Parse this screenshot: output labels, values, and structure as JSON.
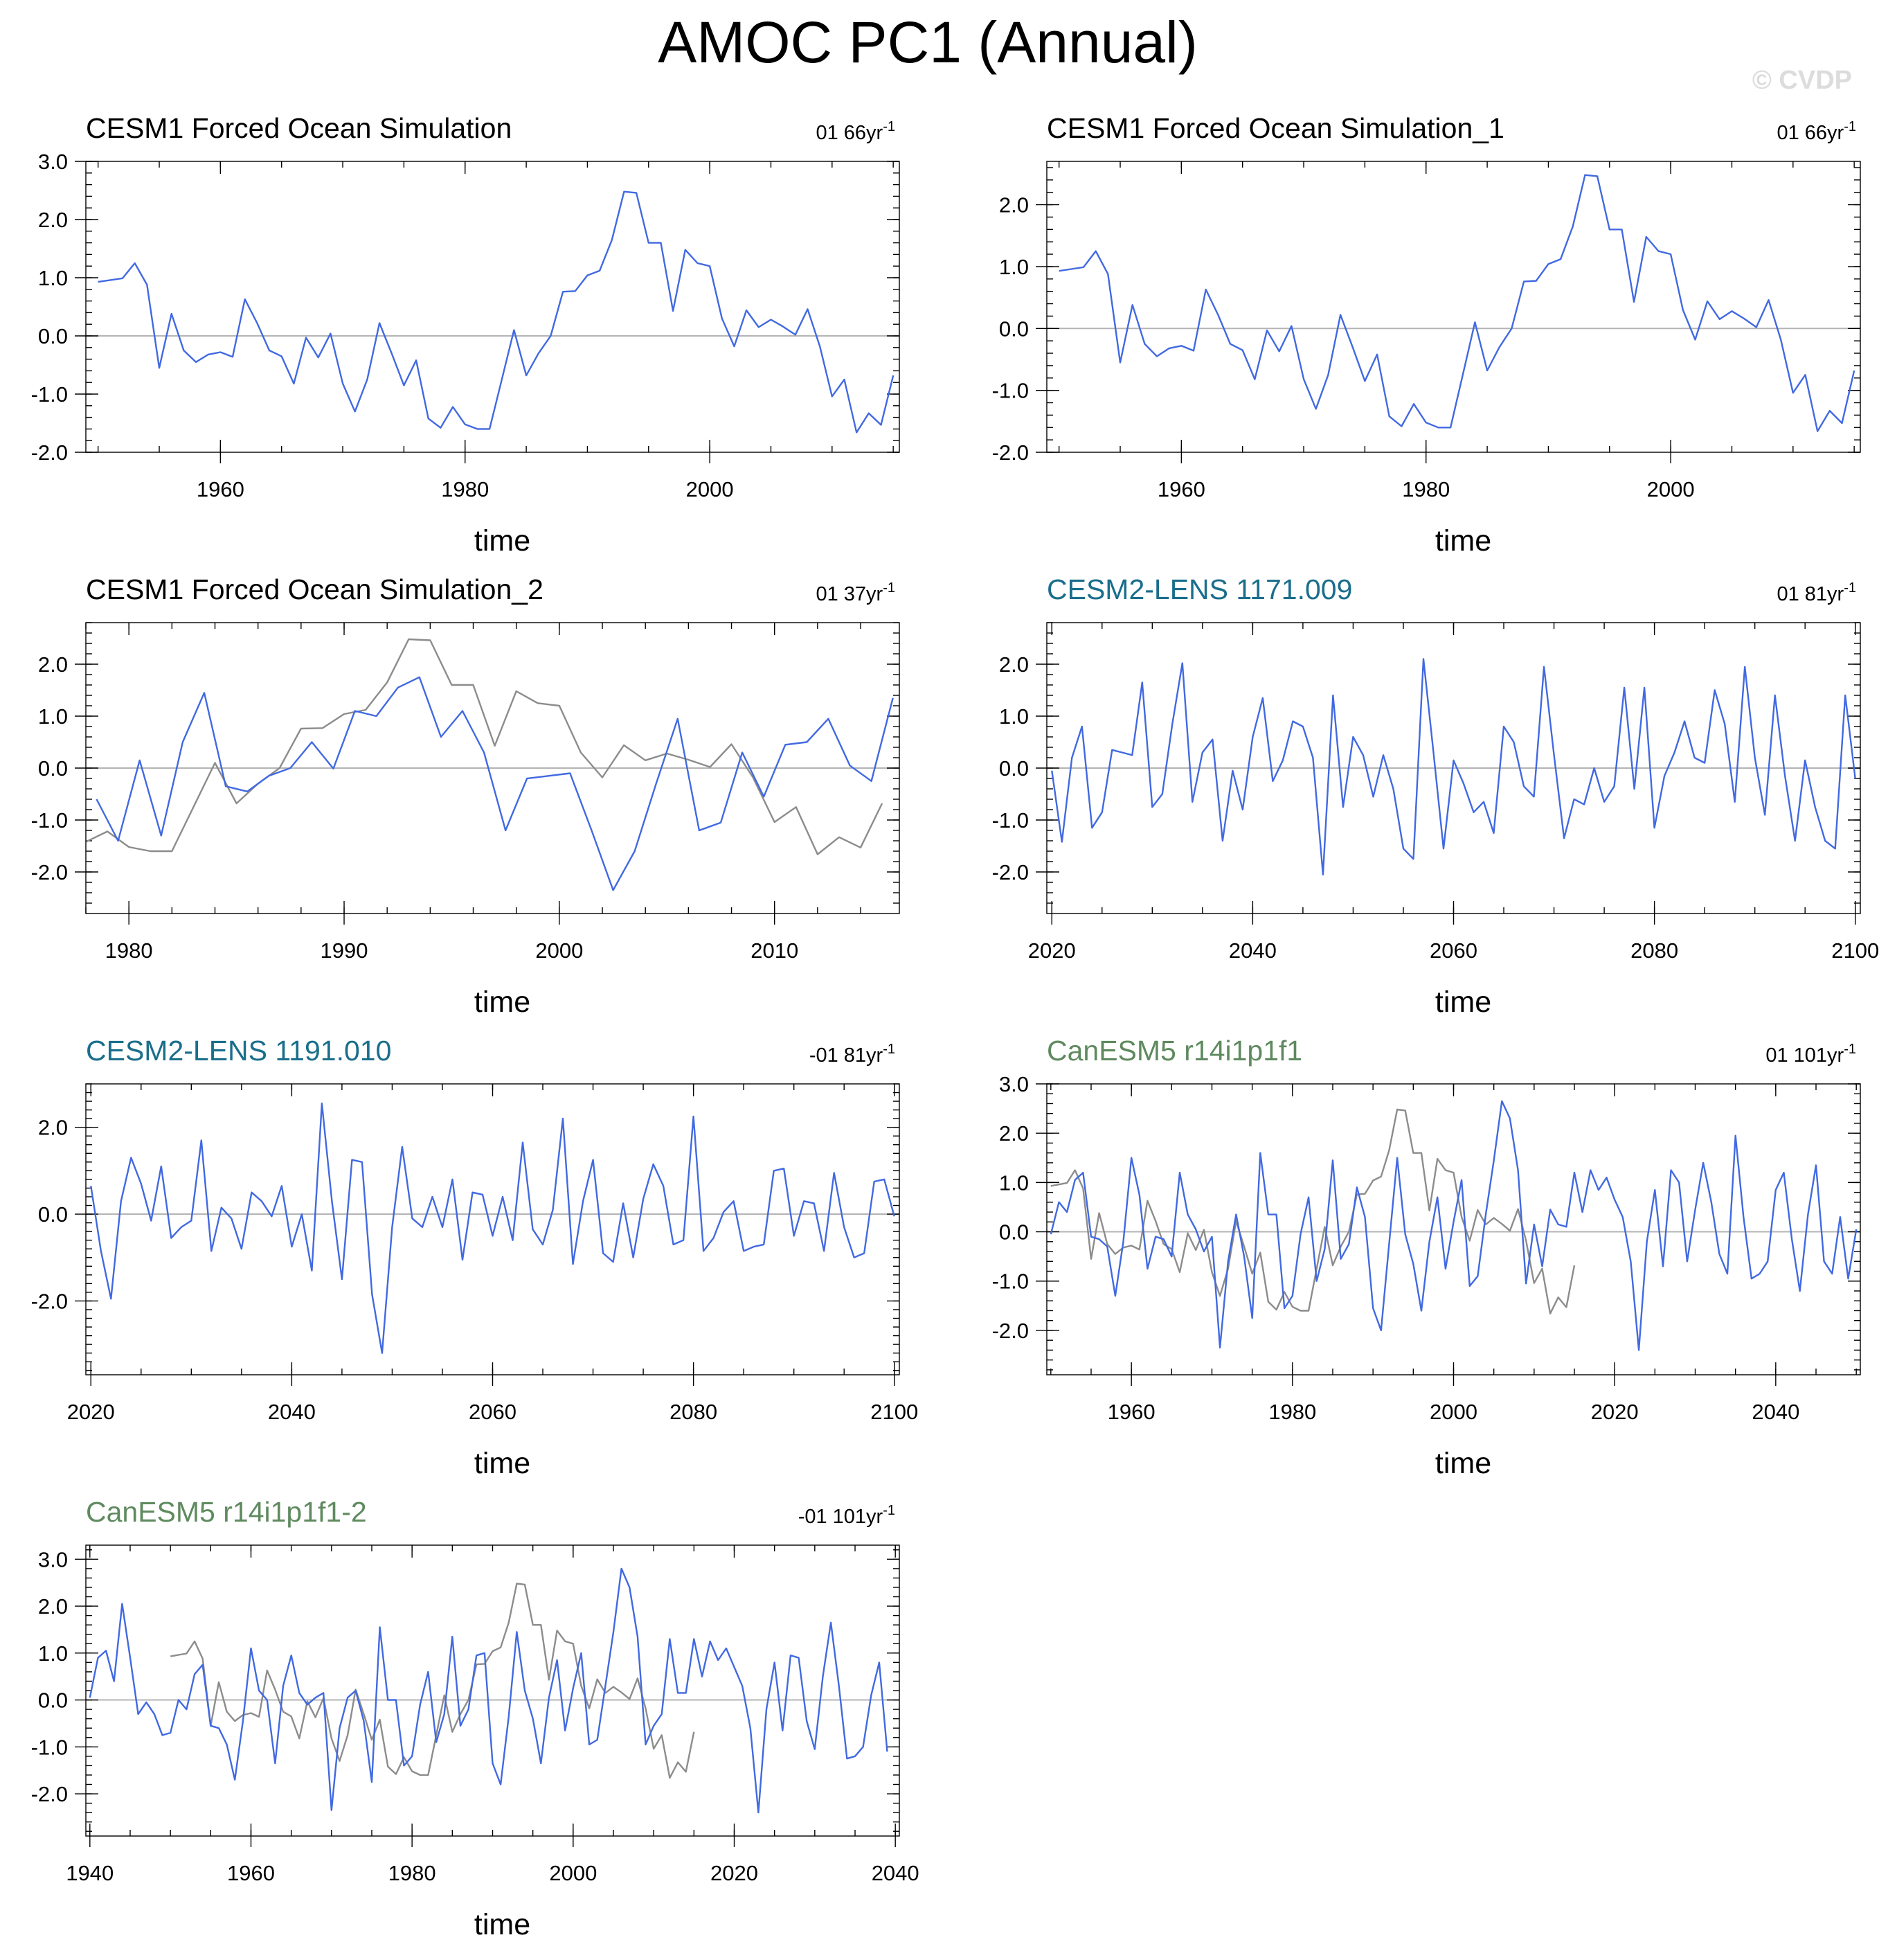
{
  "figure": {
    "title": "AMOC PC1 (Annual)",
    "watermark": "© CVDP"
  },
  "colors": {
    "model_line": "#4169e1",
    "reference_line": "#8c8c8c",
    "zero_line": "#b4b4b4",
    "title_black": "#000000",
    "title_cesm2": "#1a6e8c",
    "title_canesm5": "#5f8a5f"
  },
  "chart_data": [
    {
      "type": "line",
      "title": "CESM1 Forced Ocean Simulation",
      "title_color": "#000000",
      "annotation": "01 66yr",
      "annotation_sup": "-1",
      "xlabel": "time",
      "ylabel": "",
      "xlim": [
        1949,
        2015.5
      ],
      "ylim": [
        -2.0,
        3.0
      ],
      "xticks": [
        1960,
        1980,
        2000
      ],
      "xtick_labels": [
        "1960",
        "1980",
        "2000"
      ],
      "yticks": [
        -2,
        -1,
        0,
        1,
        2,
        3
      ],
      "ytick_labels": [
        "-2.0",
        "-1.0",
        "0.0",
        "1.0",
        "2.0",
        "3.0"
      ],
      "grid": false,
      "series": [
        {
          "role": "model",
          "x_start": 1950,
          "values": [
            0.93,
            0.96,
            0.99,
            1.25,
            0.88,
            -0.55,
            0.38,
            -0.25,
            -0.45,
            -0.32,
            -0.28,
            -0.36,
            0.63,
            0.22,
            -0.25,
            -0.35,
            -0.82,
            -0.03,
            -0.37,
            0.04,
            -0.82,
            -1.3,
            -0.75,
            0.22,
            -0.3,
            -0.85,
            -0.42,
            -1.42,
            -1.58,
            -1.22,
            -1.52,
            -1.6,
            -1.6,
            -0.75,
            0.1,
            -0.68,
            -0.3,
            0.0,
            0.76,
            0.77,
            1.04,
            1.12,
            1.65,
            2.48,
            2.46,
            1.6,
            1.6,
            0.43,
            1.48,
            1.25,
            1.2,
            0.3,
            -0.18,
            0.44,
            0.15,
            0.28,
            0.16,
            0.02,
            0.46,
            -0.18,
            -1.04,
            -0.75,
            -1.66,
            -1.33,
            -1.53,
            -0.68
          ]
        }
      ]
    },
    {
      "type": "line",
      "title": "CESM1 Forced Ocean Simulation_1",
      "title_color": "#000000",
      "annotation": "01 66yr",
      "annotation_sup": "-1",
      "xlabel": "time",
      "ylabel": "",
      "xlim": [
        1949,
        2015.5
      ],
      "ylim": [
        -2.0,
        2.7
      ],
      "xticks": [
        1960,
        1980,
        2000
      ],
      "xtick_labels": [
        "1960",
        "1980",
        "2000"
      ],
      "yticks": [
        -2,
        -1,
        0,
        1,
        2
      ],
      "ytick_labels": [
        "-2.0",
        "-1.0",
        "0.0",
        "1.0",
        "2.0"
      ],
      "grid": false,
      "series": [
        {
          "role": "model",
          "x_start": 1950,
          "values": [
            0.93,
            0.96,
            0.99,
            1.25,
            0.88,
            -0.55,
            0.38,
            -0.25,
            -0.45,
            -0.32,
            -0.28,
            -0.36,
            0.63,
            0.22,
            -0.25,
            -0.35,
            -0.82,
            -0.03,
            -0.37,
            0.04,
            -0.82,
            -1.3,
            -0.75,
            0.22,
            -0.3,
            -0.85,
            -0.42,
            -1.42,
            -1.58,
            -1.22,
            -1.52,
            -1.6,
            -1.6,
            -0.75,
            0.1,
            -0.68,
            -0.3,
            0.0,
            0.76,
            0.77,
            1.04,
            1.12,
            1.65,
            2.48,
            2.46,
            1.6,
            1.6,
            0.43,
            1.48,
            1.25,
            1.2,
            0.3,
            -0.18,
            0.44,
            0.15,
            0.28,
            0.16,
            0.02,
            0.46,
            -0.18,
            -1.04,
            -0.75,
            -1.66,
            -1.33,
            -1.53,
            -0.68
          ]
        }
      ]
    },
    {
      "type": "line",
      "title": "CESM1 Forced Ocean Simulation_2",
      "title_color": "#000000",
      "annotation": "01 37yr",
      "annotation_sup": "-1",
      "xlabel": "time",
      "ylabel": "",
      "xlim": [
        1978,
        2015.8
      ],
      "ylim": [
        -2.8,
        2.8
      ],
      "xticks": [
        1980,
        1990,
        2000,
        2010
      ],
      "xtick_labels": [
        "1980",
        "1990",
        "2000",
        "2010"
      ],
      "yticks": [
        -2,
        -1,
        0,
        1,
        2
      ],
      "ytick_labels": [
        "-2.0",
        "-1.0",
        "0.0",
        "1.0",
        "2.0"
      ],
      "grid": false,
      "series": [
        {
          "role": "reference",
          "x_start": 1978,
          "values": [
            -1.42,
            -1.22,
            -1.52,
            -1.6,
            -1.6,
            -0.75,
            0.1,
            -0.68,
            -0.3,
            0.0,
            0.76,
            0.77,
            1.04,
            1.12,
            1.65,
            2.48,
            2.46,
            1.6,
            1.6,
            0.43,
            1.48,
            1.25,
            1.2,
            0.3,
            -0.18,
            0.44,
            0.15,
            0.28,
            0.16,
            0.02,
            0.46,
            -0.18,
            -1.04,
            -0.75,
            -1.66,
            -1.33,
            -1.53,
            -0.68
          ]
        },
        {
          "role": "model",
          "x_start": 1978.5,
          "values": [
            -0.6,
            -1.4,
            0.15,
            -1.3,
            0.5,
            1.45,
            -0.35,
            -0.45,
            -0.15,
            0.0,
            0.5,
            -0.01,
            1.1,
            1.0,
            1.55,
            1.75,
            0.6,
            1.1,
            0.3,
            -1.2,
            -0.2,
            -0.15,
            -0.1,
            -1.2,
            -2.35,
            -1.6,
            -0.3,
            0.95,
            -1.2,
            -1.05,
            0.3,
            -0.55,
            0.45,
            0.5,
            0.95,
            0.05,
            -0.25,
            1.35
          ]
        }
      ]
    },
    {
      "type": "line",
      "title": "CESM2-LENS 1171.009",
      "title_color": "#1a6e8c",
      "annotation": "01 81yr",
      "annotation_sup": "-1",
      "xlabel": "time",
      "ylabel": "",
      "xlim": [
        2019.5,
        2100.5
      ],
      "ylim": [
        -2.8,
        2.8
      ],
      "xticks": [
        2020,
        2040,
        2060,
        2080,
        2100
      ],
      "xtick_labels": [
        "2020",
        "2040",
        "2060",
        "2080",
        "2100"
      ],
      "yticks": [
        -2,
        -1,
        0,
        1,
        2
      ],
      "ytick_labels": [
        "-2.0",
        "-1.0",
        "0.0",
        "1.0",
        "2.0"
      ],
      "grid": false,
      "series": [
        {
          "role": "model",
          "x_start": 2020,
          "values": [
            -0.05,
            -1.42,
            0.2,
            0.8,
            -1.15,
            -0.85,
            0.35,
            0.3,
            0.25,
            1.65,
            -0.75,
            -0.5,
            0.85,
            2.02,
            -0.65,
            0.3,
            0.55,
            -1.4,
            -0.05,
            -0.8,
            0.6,
            1.35,
            -0.25,
            0.15,
            0.9,
            0.8,
            0.2,
            -2.05,
            1.4,
            -0.75,
            0.6,
            0.25,
            -0.55,
            0.25,
            -0.4,
            -1.55,
            -1.75,
            2.1,
            0.3,
            -1.55,
            0.15,
            -0.3,
            -0.85,
            -0.65,
            -1.25,
            0.8,
            0.5,
            -0.35,
            -0.55,
            1.95,
            0.25,
            -1.35,
            -0.6,
            -0.7,
            0.0,
            -0.65,
            -0.35,
            1.55,
            -0.4,
            1.55,
            -1.15,
            -0.15,
            0.3,
            0.9,
            0.2,
            0.1,
            1.5,
            0.85,
            -0.65,
            1.95,
            0.2,
            -0.9,
            1.4,
            -0.15,
            -1.4,
            0.15,
            -0.75,
            -1.4,
            -1.55,
            1.4,
            -0.2
          ]
        }
      ]
    },
    {
      "type": "line",
      "title": "CESM2-LENS 1191.010",
      "title_color": "#1a6e8c",
      "annotation": "-01 81yr",
      "annotation_sup": "-1",
      "xlabel": "time",
      "ylabel": "",
      "xlim": [
        2019.5,
        2100.5
      ],
      "ylim": [
        -3.7,
        3.0
      ],
      "xticks": [
        2020,
        2040,
        2060,
        2080,
        2100
      ],
      "xtick_labels": [
        "2020",
        "2040",
        "2060",
        "2080",
        "2100"
      ],
      "yticks": [
        -2,
        0,
        2
      ],
      "ytick_labels": [
        "-2.0",
        "0.0",
        "2.0"
      ],
      "grid": false,
      "series": [
        {
          "role": "model",
          "x_start": 2020,
          "values": [
            0.65,
            -0.85,
            -1.95,
            0.3,
            1.3,
            0.7,
            -0.15,
            1.1,
            -0.55,
            -0.3,
            -0.15,
            1.7,
            -0.85,
            0.15,
            -0.1,
            -0.8,
            0.5,
            0.3,
            -0.05,
            0.65,
            -0.75,
            0.0,
            -1.3,
            2.55,
            0.3,
            -1.5,
            1.25,
            1.2,
            -1.85,
            -3.2,
            -0.3,
            1.55,
            -0.1,
            -0.3,
            0.4,
            -0.3,
            0.8,
            -1.05,
            0.5,
            0.45,
            -0.5,
            0.4,
            -0.6,
            1.65,
            -0.35,
            -0.7,
            0.1,
            2.2,
            -1.15,
            0.3,
            1.25,
            -0.9,
            -1.1,
            0.25,
            -1.0,
            0.35,
            1.15,
            0.65,
            -0.7,
            -0.6,
            2.25,
            -0.85,
            -0.55,
            0.05,
            0.3,
            -0.85,
            -0.75,
            -0.7,
            1.0,
            1.05,
            -0.5,
            0.3,
            0.25,
            -0.85,
            0.95,
            -0.3,
            -1.0,
            -0.9,
            0.75,
            0.8,
            -0.05
          ]
        }
      ]
    },
    {
      "type": "line",
      "title": "CanESM5 r14i1p1f1",
      "title_color": "#5f8a5f",
      "annotation": "01 101yr",
      "annotation_sup": "-1",
      "xlabel": "time",
      "ylabel": "",
      "xlim": [
        1949.5,
        2050.5
      ],
      "ylim": [
        -2.9,
        3.0
      ],
      "xticks": [
        1960,
        1980,
        2000,
        2020,
        2040
      ],
      "xtick_labels": [
        "1960",
        "1980",
        "2000",
        "2020",
        "2040"
      ],
      "yticks": [
        -2,
        -1,
        0,
        1,
        2,
        3
      ],
      "ytick_labels": [
        "-2.0",
        "-1.0",
        "0.0",
        "1.0",
        "2.0",
        "3.0"
      ],
      "grid": false,
      "series": [
        {
          "role": "reference",
          "x_start": 1950,
          "values": [
            0.93,
            0.96,
            0.99,
            1.25,
            0.88,
            -0.55,
            0.38,
            -0.25,
            -0.45,
            -0.32,
            -0.28,
            -0.36,
            0.63,
            0.22,
            -0.25,
            -0.35,
            -0.82,
            -0.03,
            -0.37,
            0.04,
            -0.82,
            -1.3,
            -0.75,
            0.22,
            -0.3,
            -0.85,
            -0.42,
            -1.42,
            -1.58,
            -1.22,
            -1.52,
            -1.6,
            -1.6,
            -0.75,
            0.1,
            -0.68,
            -0.3,
            0.0,
            0.76,
            0.77,
            1.04,
            1.12,
            1.65,
            2.48,
            2.46,
            1.6,
            1.6,
            0.43,
            1.48,
            1.25,
            1.2,
            0.3,
            -0.18,
            0.44,
            0.15,
            0.28,
            0.16,
            0.02,
            0.46,
            -0.18,
            -1.04,
            -0.75,
            -1.66,
            -1.33,
            -1.53,
            -0.68
          ]
        },
        {
          "role": "model",
          "x_start": 1950,
          "values": [
            -0.05,
            0.6,
            0.4,
            1.05,
            1.2,
            -0.1,
            -0.15,
            -0.3,
            -1.3,
            -0.2,
            1.5,
            0.75,
            -0.75,
            -0.1,
            -0.15,
            -0.5,
            1.2,
            0.35,
            0.05,
            -0.4,
            -0.1,
            -2.35,
            -0.6,
            0.35,
            -0.5,
            -1.75,
            1.6,
            0.35,
            0.35,
            -1.55,
            -1.3,
            -0.05,
            0.7,
            -1.0,
            -0.35,
            1.45,
            -0.55,
            -0.25,
            0.9,
            0.3,
            -1.55,
            -2.0,
            -0.25,
            1.5,
            -0.05,
            -0.65,
            -1.6,
            -0.2,
            0.7,
            -0.75,
            0.2,
            1.05,
            -1.1,
            -0.9,
            0.35,
            1.45,
            2.65,
            2.3,
            1.25,
            -1.05,
            0.15,
            -0.7,
            0.45,
            0.15,
            0.1,
            1.2,
            0.4,
            1.25,
            0.85,
            1.1,
            0.65,
            0.3,
            -0.6,
            -2.4,
            -0.2,
            0.85,
            -0.7,
            1.25,
            1.0,
            -0.6,
            0.45,
            1.4,
            0.6,
            -0.45,
            -0.85,
            1.95,
            0.3,
            -0.95,
            -0.85,
            -0.6,
            0.85,
            1.2,
            -0.15,
            -1.2,
            0.35,
            1.35,
            -0.6,
            -0.85,
            0.3,
            -0.95,
            0.05
          ]
        }
      ]
    },
    {
      "type": "line",
      "title": "CanESM5 r14i1p1f1-2",
      "title_color": "#5f8a5f",
      "annotation": "-01 101yr",
      "annotation_sup": "-1",
      "xlabel": "time",
      "ylabel": "",
      "xlim": [
        1939.5,
        2040.5
      ],
      "ylim": [
        -2.9,
        3.3
      ],
      "xticks": [
        1940,
        1960,
        1980,
        2000,
        2020,
        2040
      ],
      "xtick_labels": [
        "1940",
        "1960",
        "1980",
        "2000",
        "2020",
        "2040"
      ],
      "yticks": [
        -2,
        -1,
        0,
        1,
        2,
        3
      ],
      "ytick_labels": [
        "-2.0",
        "-1.0",
        "0.0",
        "1.0",
        "2.0",
        "3.0"
      ],
      "grid": false,
      "series": [
        {
          "role": "reference",
          "x_start": 1950,
          "values": [
            0.93,
            0.96,
            0.99,
            1.25,
            0.88,
            -0.55,
            0.38,
            -0.25,
            -0.45,
            -0.32,
            -0.28,
            -0.36,
            0.63,
            0.22,
            -0.25,
            -0.35,
            -0.82,
            -0.03,
            -0.37,
            0.04,
            -0.82,
            -1.3,
            -0.75,
            0.22,
            -0.3,
            -0.85,
            -0.42,
            -1.42,
            -1.58,
            -1.22,
            -1.52,
            -1.6,
            -1.6,
            -0.75,
            0.1,
            -0.68,
            -0.3,
            0.0,
            0.76,
            0.77,
            1.04,
            1.12,
            1.65,
            2.48,
            2.46,
            1.6,
            1.6,
            0.43,
            1.48,
            1.25,
            1.2,
            0.3,
            -0.18,
            0.44,
            0.15,
            0.28,
            0.16,
            0.02,
            0.46,
            -0.18,
            -1.04,
            -0.75,
            -1.66,
            -1.33,
            -1.53,
            -0.68
          ]
        },
        {
          "role": "model",
          "x_start": 1940,
          "values": [
            0.05,
            0.9,
            1.05,
            0.4,
            2.05,
            0.9,
            -0.3,
            -0.05,
            -0.3,
            -0.75,
            -0.7,
            0.0,
            -0.2,
            0.55,
            0.75,
            -0.55,
            -0.6,
            -0.95,
            -1.7,
            -0.45,
            1.1,
            0.2,
            0.0,
            -1.35,
            0.3,
            0.95,
            0.15,
            -0.1,
            0.05,
            0.15,
            -2.35,
            -0.6,
            0.05,
            0.2,
            -0.45,
            -1.75,
            1.55,
            0.0,
            0.0,
            -1.4,
            -1.2,
            -0.1,
            0.6,
            -0.9,
            -0.3,
            1.35,
            -0.55,
            -0.2,
            0.95,
            1.0,
            -1.35,
            -1.8,
            -0.35,
            1.45,
            0.2,
            -0.4,
            -1.35,
            0.05,
            0.85,
            -0.65,
            0.25,
            1.0,
            -0.95,
            -0.85,
            0.3,
            1.45,
            2.8,
            2.4,
            1.35,
            -0.95,
            -0.55,
            -0.3,
            1.3,
            0.15,
            0.15,
            1.3,
            0.5,
            1.25,
            0.85,
            1.1,
            0.7,
            0.3,
            -0.6,
            -2.4,
            -0.2,
            0.8,
            -0.65,
            0.95,
            0.9,
            -0.45,
            -1.05,
            0.5,
            1.65,
            0.3,
            -1.25,
            -1.2,
            -1.0,
            0.1,
            0.8,
            -1.1
          ]
        }
      ]
    }
  ]
}
